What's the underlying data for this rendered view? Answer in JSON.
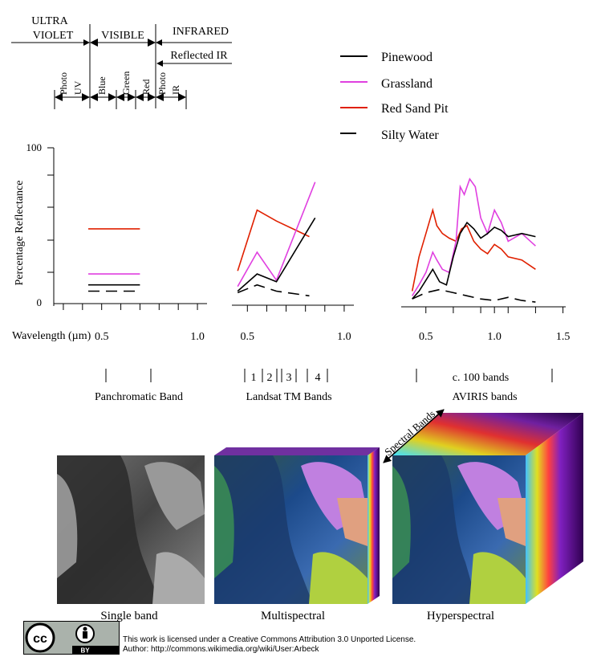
{
  "spectrum": {
    "region_uv_line1": "ULTRA",
    "region_uv_line2": "VIOLET",
    "region_visible": "VISIBLE",
    "region_infrared": "INFRARED",
    "reflected_ir": "Reflected IR",
    "bands": [
      "Photo UV",
      "Blue",
      "Green",
      "Red",
      "Photo IR"
    ]
  },
  "legend": [
    {
      "label": "Pinewood",
      "color": "#000000",
      "style": "solid"
    },
    {
      "label": "Grassland",
      "color": "#e040e0",
      "style": "solid"
    },
    {
      "label": "Red Sand Pit",
      "color": "#e02000",
      "style": "solid"
    },
    {
      "label": "Silty Water",
      "color": "#000000",
      "style": "dashed"
    }
  ],
  "axes": {
    "ylabel": "Percentage Reflectance",
    "y_top": "100",
    "y_bottom": "0",
    "xlabel": "Wavelength (µm)"
  },
  "chart_data": [
    {
      "type": "line",
      "name": "Panchromatic",
      "x_ticks": [
        "0.5",
        "1.0"
      ],
      "series": [
        {
          "name": "Red Sand Pit",
          "x": [
            0.43,
            0.7
          ],
          "y": [
            48,
            48
          ]
        },
        {
          "name": "Grassland",
          "x": [
            0.43,
            0.7
          ],
          "y": [
            19,
            19
          ]
        },
        {
          "name": "Pinewood",
          "x": [
            0.43,
            0.7
          ],
          "y": [
            12,
            12
          ]
        },
        {
          "name": "Silty Water",
          "x": [
            0.43,
            0.7
          ],
          "y": [
            8,
            8
          ]
        }
      ]
    },
    {
      "type": "line",
      "name": "Landsat TM",
      "x_ticks": [
        "0.5",
        "1.0"
      ],
      "series": [
        {
          "name": "Red Sand Pit",
          "x": [
            0.45,
            0.55,
            0.65,
            0.82
          ],
          "y": [
            21,
            60,
            53,
            43
          ]
        },
        {
          "name": "Grassland",
          "x": [
            0.45,
            0.55,
            0.65,
            0.85
          ],
          "y": [
            11,
            33,
            15,
            78
          ]
        },
        {
          "name": "Pinewood",
          "x": [
            0.45,
            0.55,
            0.65,
            0.85
          ],
          "y": [
            8,
            19,
            14,
            55
          ]
        },
        {
          "name": "Silty Water",
          "x": [
            0.45,
            0.55,
            0.65,
            0.82
          ],
          "y": [
            7,
            12,
            8,
            5
          ]
        }
      ]
    },
    {
      "type": "line",
      "name": "AVIRIS",
      "x_ticks": [
        "0.5",
        "1.0",
        "1.5"
      ],
      "series": [
        {
          "name": "Red Sand Pit",
          "x": [
            0.4,
            0.45,
            0.5,
            0.55,
            0.58,
            0.62,
            0.67,
            0.72,
            0.76,
            0.8,
            0.85,
            0.9,
            0.95,
            1.0,
            1.05,
            1.1,
            1.2,
            1.3
          ],
          "y": [
            8,
            30,
            45,
            60,
            50,
            45,
            42,
            40,
            48,
            50,
            40,
            35,
            32,
            38,
            35,
            30,
            28,
            22
          ]
        },
        {
          "name": "Grassland",
          "x": [
            0.4,
            0.45,
            0.5,
            0.55,
            0.58,
            0.62,
            0.67,
            0.72,
            0.75,
            0.78,
            0.82,
            0.86,
            0.9,
            0.95,
            1.0,
            1.05,
            1.1,
            1.2,
            1.3
          ],
          "y": [
            5,
            12,
            20,
            33,
            28,
            22,
            20,
            40,
            75,
            70,
            80,
            75,
            55,
            45,
            60,
            52,
            40,
            45,
            37
          ]
        },
        {
          "name": "Pinewood",
          "x": [
            0.4,
            0.45,
            0.5,
            0.55,
            0.6,
            0.65,
            0.7,
            0.75,
            0.8,
            0.85,
            0.9,
            0.95,
            1.0,
            1.05,
            1.1,
            1.2,
            1.3
          ],
          "y": [
            3,
            8,
            15,
            22,
            14,
            12,
            30,
            45,
            52,
            48,
            42,
            45,
            49,
            47,
            43,
            45,
            43
          ]
        },
        {
          "name": "Silty Water",
          "x": [
            0.4,
            0.5,
            0.6,
            0.7,
            0.8,
            0.9,
            1.0,
            1.1,
            1.2,
            1.3
          ],
          "y": [
            3,
            7,
            9,
            7,
            5,
            3,
            2,
            4,
            2,
            1
          ]
        }
      ]
    }
  ],
  "band_labels": {
    "panchromatic": "Panchromatic Band",
    "landsat": "Landsat TM Bands",
    "landsat_numbers": [
      "1",
      "2",
      "3",
      "4"
    ],
    "aviris_count": "c. 100 bands",
    "aviris": "AVIRIS bands"
  },
  "images": {
    "single": "Single band",
    "multi": "Multispectral",
    "hyper": "Hyperspectral",
    "spectral_bands": "Spectral Bands"
  },
  "license": {
    "line1": "This work is licensed under a Creative Commons Attribution 3.0 Unported License.",
    "line2": "Author: http://commons.wikimedia.org/wiki/User:Arbeck",
    "badge_cc": "cc",
    "badge_by": "BY"
  }
}
